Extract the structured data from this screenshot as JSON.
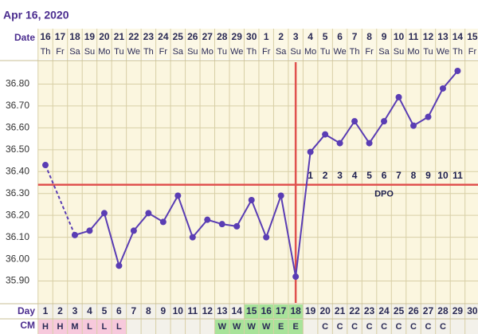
{
  "chart_data": {
    "type": "line",
    "title": "Apr 16, 2020",
    "date_row_label": "Date",
    "day_row_label": "Day",
    "cm_row_label": "CM",
    "dates": [
      "16",
      "17",
      "18",
      "19",
      "20",
      "21",
      "22",
      "23",
      "24",
      "25",
      "26",
      "27",
      "28",
      "29",
      "30",
      "1",
      "2",
      "3",
      "4",
      "5",
      "6",
      "7",
      "8",
      "9",
      "10",
      "11",
      "12",
      "13",
      "14",
      "15"
    ],
    "weekdays": [
      "Th",
      "Fr",
      "Sa",
      "Su",
      "Mo",
      "Tu",
      "We",
      "Th",
      "Fr",
      "Sa",
      "Su",
      "Mo",
      "Tu",
      "We",
      "Th",
      "Fr",
      "Sa",
      "Su",
      "Mo",
      "Tu",
      "We",
      "Th",
      "Fr",
      "Sa",
      "Su",
      "Mo",
      "Tu",
      "We",
      "Th",
      "Fr"
    ],
    "x": [
      1,
      2,
      3,
      4,
      5,
      6,
      7,
      8,
      9,
      10,
      11,
      12,
      13,
      14,
      15,
      16,
      17,
      18,
      19,
      20,
      21,
      22,
      23,
      24,
      25,
      26,
      27,
      28,
      29,
      30
    ],
    "xlim": [
      0.5,
      30.5
    ],
    "values": [
      36.43,
      null,
      36.11,
      36.13,
      36.21,
      35.97,
      36.13,
      36.21,
      36.17,
      36.29,
      36.1,
      36.18,
      36.16,
      36.15,
      36.27,
      36.1,
      36.29,
      35.92,
      36.49,
      36.57,
      36.53,
      36.63,
      36.53,
      36.63,
      36.74,
      36.61,
      36.65,
      36.78,
      36.86,
      null
    ],
    "color": "#5a3db4",
    "ylim": [
      35.8,
      36.9
    ],
    "yticks": [
      {
        "value": 35.9,
        "label": "35.90"
      },
      {
        "value": 36.0,
        "label": "36.00"
      },
      {
        "value": 36.1,
        "label": "36.10"
      },
      {
        "value": 36.2,
        "label": "36.20"
      },
      {
        "value": 36.3,
        "label": "36.30"
      },
      {
        "value": 36.4,
        "label": "36.40"
      },
      {
        "value": 36.5,
        "label": "36.50"
      },
      {
        "value": 36.6,
        "label": "36.60"
      },
      {
        "value": 36.7,
        "label": "36.70"
      },
      {
        "value": 36.8,
        "label": "36.80"
      }
    ],
    "grid": true,
    "coverline": 36.34,
    "marker_line_color": "#e0524f",
    "ovulation_day": 18,
    "dpo_label": "DPO",
    "dpo": [
      1,
      2,
      3,
      4,
      5,
      6,
      7,
      8,
      9,
      10,
      11
    ],
    "cm": [
      "H",
      "H",
      "M",
      "L",
      "L",
      "L",
      null,
      null,
      null,
      null,
      null,
      null,
      "W",
      "W",
      "W",
      "W",
      "E",
      "E",
      null,
      "C",
      "C",
      "C",
      "C",
      "C",
      "C",
      "C",
      "C",
      "C",
      null,
      null
    ],
    "cm_colors": {
      "H": "#f7c9dc",
      "M": "#f7c9dc",
      "L": "#f7c9dc",
      "W": "#a8e39a",
      "E": "#a8e39a"
    },
    "highlight_days": [
      15,
      16,
      17,
      18
    ],
    "highlight_color": "#a8e39a"
  }
}
